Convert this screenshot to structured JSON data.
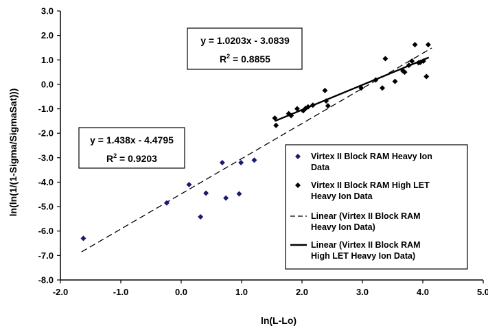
{
  "chart_data": {
    "type": "scatter",
    "xlabel": "ln(L-Lo)",
    "ylabel": "ln(ln(1/(1-Sigma/SigmaSat)))",
    "xlim": [
      -2.0,
      5.0
    ],
    "ylim": [
      -8.0,
      3.0
    ],
    "x_ticks": [
      "-2.0",
      "-1.0",
      "0.0",
      "1.0",
      "2.0",
      "3.0",
      "4.0",
      "5.0"
    ],
    "y_ticks": [
      "3.0",
      "2.0",
      "1.0",
      "0.0",
      "-1.0",
      "-2.0",
      "-3.0",
      "-4.0",
      "-5.0",
      "-6.0",
      "-7.0",
      "-8.0"
    ],
    "grid": false,
    "legend_position": "bottom-right",
    "series": [
      {
        "name": "Virtex II Block RAM Heavy Ion Data",
        "kind": "scatter",
        "marker": "diamond",
        "color": "#1a1a6e",
        "points": [
          [
            -1.62,
            -6.3
          ],
          [
            -0.24,
            -4.85
          ],
          [
            0.13,
            -4.1
          ],
          [
            0.32,
            -5.42
          ],
          [
            0.41,
            -4.45
          ],
          [
            0.68,
            -3.2
          ],
          [
            0.74,
            -4.65
          ],
          [
            0.96,
            -4.48
          ],
          [
            0.99,
            -3.2
          ],
          [
            1.21,
            -3.1
          ]
        ]
      },
      {
        "name": "Virtex II Block RAM High LET Heavy Ion Data",
        "kind": "scatter",
        "marker": "diamond",
        "color": "#000000",
        "points": [
          [
            1.55,
            -1.38
          ],
          [
            1.57,
            -1.68
          ],
          [
            1.78,
            -1.2
          ],
          [
            1.82,
            -1.28
          ],
          [
            1.92,
            -1.0
          ],
          [
            2.02,
            -1.08
          ],
          [
            2.06,
            -0.98
          ],
          [
            2.1,
            -0.92
          ],
          [
            2.18,
            -0.85
          ],
          [
            2.38,
            -0.25
          ],
          [
            2.4,
            -0.68
          ],
          [
            2.43,
            -0.88
          ],
          [
            2.98,
            -0.15
          ],
          [
            3.22,
            0.18
          ],
          [
            3.33,
            -0.15
          ],
          [
            3.38,
            1.05
          ],
          [
            3.54,
            0.12
          ],
          [
            3.67,
            0.55
          ],
          [
            3.7,
            0.5
          ],
          [
            3.77,
            0.78
          ],
          [
            3.82,
            0.95
          ],
          [
            3.87,
            1.62
          ],
          [
            3.93,
            0.88
          ],
          [
            3.96,
            0.9
          ],
          [
            4.01,
            0.95
          ],
          [
            4.06,
            0.32
          ],
          [
            4.09,
            1.62
          ]
        ]
      },
      {
        "name": "Linear (Virtex II Block RAM Heavy Ion Data)",
        "kind": "line",
        "style": "dashed",
        "color": "#000000",
        "slope": 1.438,
        "intercept": -4.4795,
        "x_range": [
          -1.65,
          4.15
        ]
      },
      {
        "name": "Linear (Virtex II Block RAM High LET Heavy Ion Data)",
        "kind": "line",
        "style": "solid",
        "color": "#000000",
        "slope": 1.0203,
        "intercept": -3.0839,
        "x_range": [
          1.55,
          4.1
        ]
      }
    ],
    "annotations": [
      {
        "id": "high-let-fit",
        "equation": "y = 1.0203x - 3.0839",
        "r2_prefix": "R",
        "r2_sup": "2",
        "r2_value": " = 0.8855"
      },
      {
        "id": "heavy-ion-fit",
        "equation": "y = 1.438x - 4.4795",
        "r2_prefix": "R",
        "r2_sup": "2",
        "r2_value": " = 0.9203"
      }
    ],
    "legend": [
      {
        "marker": "diamond",
        "color": "#1a1a6e",
        "lines": [
          "Virtex II Block RAM Heavy Ion",
          "Data"
        ]
      },
      {
        "marker": "diamond",
        "color": "#000000",
        "lines": [
          "Virtex II Block RAM High LET",
          "Heavy Ion Data"
        ]
      },
      {
        "marker": "dashed-line",
        "color": "#000000",
        "lines": [
          "Linear (Virtex II Block RAM",
          "Heavy Ion Data)"
        ]
      },
      {
        "marker": "solid-line",
        "color": "#000000",
        "lines": [
          "Linear (Virtex II Block RAM",
          "High LET Heavy Ion Data)"
        ]
      }
    ]
  }
}
